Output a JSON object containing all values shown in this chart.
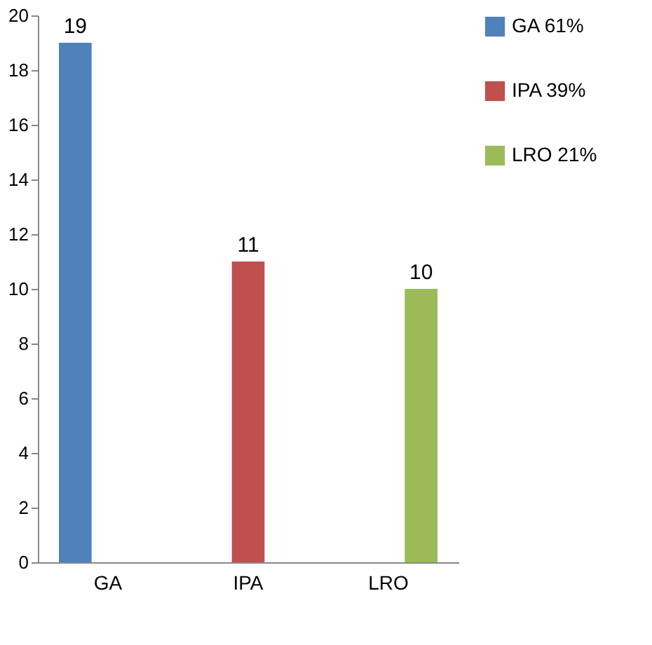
{
  "chart_data": {
    "type": "bar",
    "categories": [
      "GA",
      "IPA",
      "LRO"
    ],
    "series": [
      {
        "name": "GA 61%",
        "color": "#4f81bd",
        "values": [
          19,
          null,
          null
        ]
      },
      {
        "name": "IPA 39%",
        "color": "#c0504d",
        "values": [
          null,
          11,
          null
        ]
      },
      {
        "name": "LRO 21%",
        "color": "#9bbb59",
        "values": [
          null,
          null,
          10
        ]
      }
    ],
    "ylim": [
      0,
      20
    ],
    "yticks": [
      0,
      2,
      4,
      6,
      8,
      10,
      12,
      14,
      16,
      18,
      20
    ],
    "grid": false,
    "legend": "right",
    "data_labels": true
  }
}
